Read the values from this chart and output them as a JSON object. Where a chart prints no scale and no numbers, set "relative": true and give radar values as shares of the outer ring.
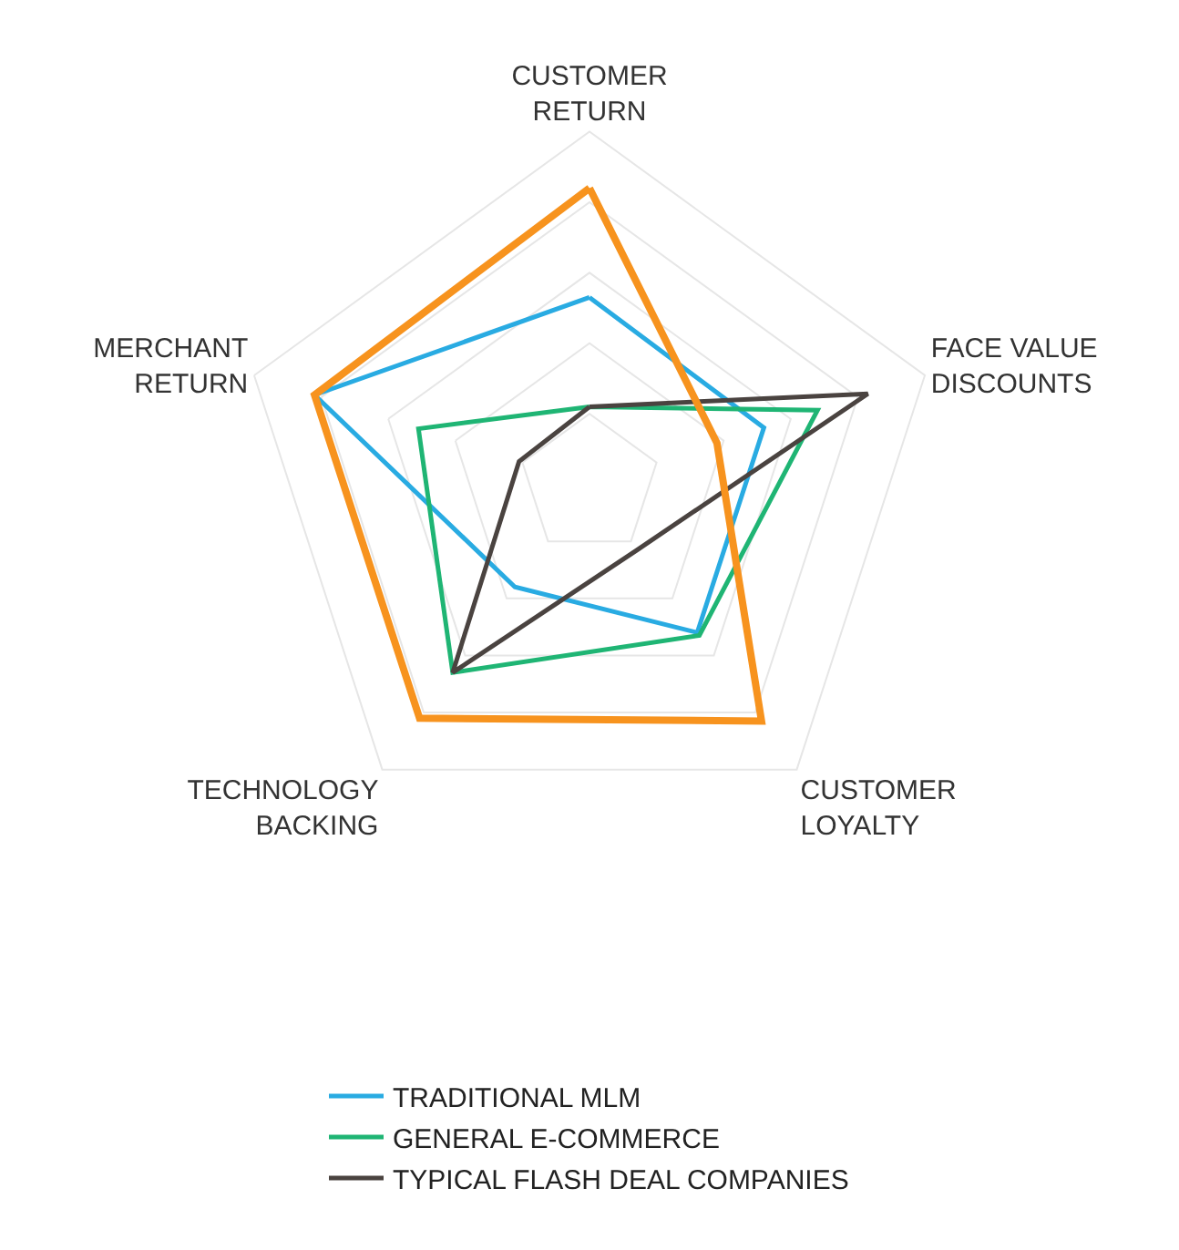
{
  "chart_data": {
    "type": "radar",
    "relative": true,
    "grid": true,
    "legend": "bottom",
    "marker": "none",
    "categories": [
      "CUSTOMER RETURN",
      "FACE VALUE DISCOUNTS",
      "CUSTOMER LOYALTY",
      "TECHNOLOGY BACKING",
      "MERCHANT RETURN"
    ],
    "series": [
      {
        "name": "TRADITIONAL MLM",
        "color": "#29abe2",
        "values": [
          0.53,
          0.52,
          0.52,
          0.36,
          0.82
        ]
      },
      {
        "name": "GENERAL E-COMMERCE",
        "color": "#1fb574",
        "values": [
          0.22,
          0.68,
          0.53,
          0.66,
          0.51
        ]
      },
      {
        "name": "TYPICAL FLASH DEAL COMPANIES",
        "color": "#4a4340",
        "values": [
          0.22,
          0.83,
          0.23,
          0.66,
          0.21
        ]
      },
      {
        "color": "#f7931e",
        "values": [
          0.84,
          0.38,
          0.83,
          0.82,
          0.82
        ]
      }
    ]
  }
}
